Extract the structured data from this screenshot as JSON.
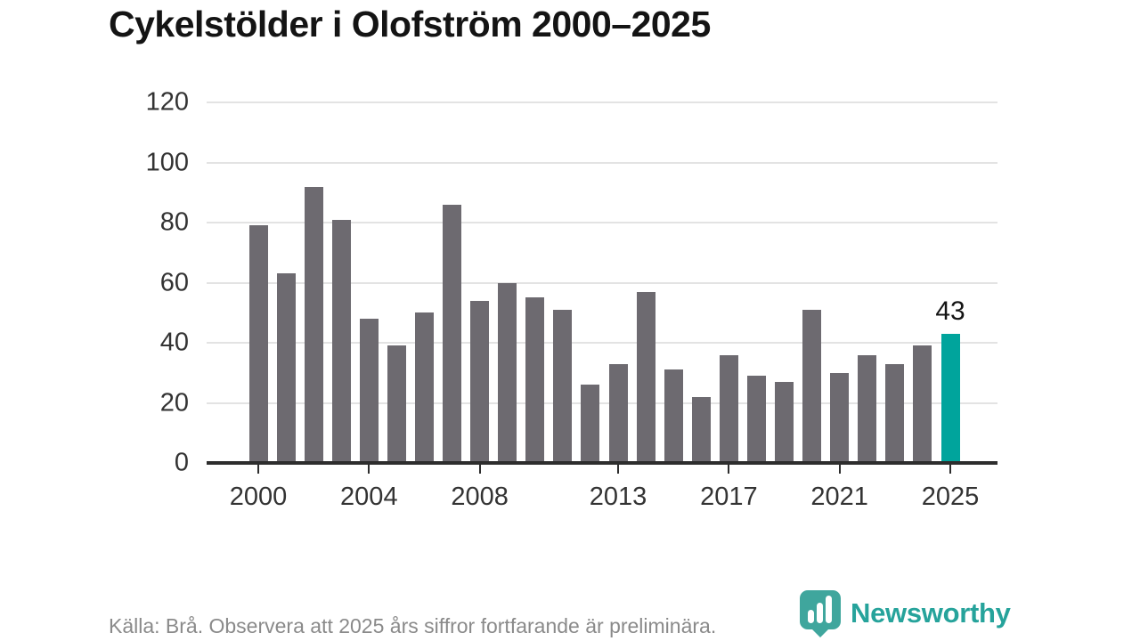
{
  "title": "Cykelstölder i Olofström 2000–2025",
  "chart_data": {
    "type": "bar",
    "title": "Cykelstölder i Olofström 2000–2025",
    "xlabel": "",
    "ylabel": "",
    "categories": [
      2000,
      2001,
      2002,
      2003,
      2004,
      2005,
      2006,
      2007,
      2008,
      2009,
      2010,
      2011,
      2012,
      2013,
      2014,
      2015,
      2016,
      2017,
      2018,
      2019,
      2020,
      2021,
      2022,
      2023,
      2024,
      2025
    ],
    "values": [
      79,
      63,
      92,
      81,
      48,
      39,
      50,
      86,
      54,
      60,
      55,
      51,
      26,
      33,
      57,
      31,
      22,
      36,
      29,
      27,
      51,
      30,
      36,
      33,
      39,
      43
    ],
    "ylim": [
      0,
      120
    ],
    "yticks": [
      0,
      20,
      40,
      60,
      80,
      100,
      120
    ],
    "xtick_years": [
      2000,
      2004,
      2008,
      2013,
      2017,
      2021,
      2025
    ],
    "grid": true,
    "legend": "none",
    "bar_color": "#6d6a70",
    "highlight_year": 2025,
    "highlight_color": "#00a49c",
    "annotation": {
      "year": 2025,
      "text": "43"
    },
    "gridline_color": "#e3e3e3",
    "axis_color": "#2d2d2d",
    "tick_label_color": "#333333"
  },
  "footer": {
    "source_note": "Källa: Brå. Observera att 2025 års siffror fortfarande är preliminära."
  },
  "branding": {
    "logo_text": "Newsworthy",
    "logo_text_color": "#26a39b",
    "logo_icon_color": "#3fa69d",
    "logo_icon_name": "newsworthy-barchart-pin-icon"
  }
}
